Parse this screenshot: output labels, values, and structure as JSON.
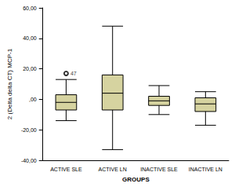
{
  "chart_data": {
    "type": "boxplot",
    "xlabel": "GROUPS",
    "ylabel": "2 (Delta delta CT) MCP-1",
    "categories": [
      "ACTIVE SLE",
      "ACTIVE LN",
      "INACTIVE SLE",
      "INACTIVE LN"
    ],
    "boxes": [
      {
        "min": -14,
        "q1": -7,
        "median": -2,
        "q3": 3,
        "max": 13
      },
      {
        "min": -33,
        "q1": -7,
        "median": 4,
        "q3": 16,
        "max": 48
      },
      {
        "min": -10,
        "q1": -4,
        "median": -1,
        "q3": 2,
        "max": 9
      },
      {
        "min": -17,
        "q1": -8,
        "median": -3,
        "q3": 1,
        "max": 5
      }
    ],
    "outliers": [
      {
        "category": "ACTIVE SLE",
        "value": 17,
        "label": "47"
      }
    ],
    "marker": "circle",
    "color": "#d6d3a0",
    "ylim": [
      -40,
      60
    ],
    "yticks": [
      {
        "value": -40,
        "label": "-40,00"
      },
      {
        "value": -20,
        "label": "-20,00"
      },
      {
        "value": 0,
        "label": ",00"
      },
      {
        "value": 20,
        "label": "20,00"
      },
      {
        "value": 40,
        "label": "40,00"
      },
      {
        "value": 60,
        "label": "60,00"
      }
    ],
    "grid": false
  }
}
